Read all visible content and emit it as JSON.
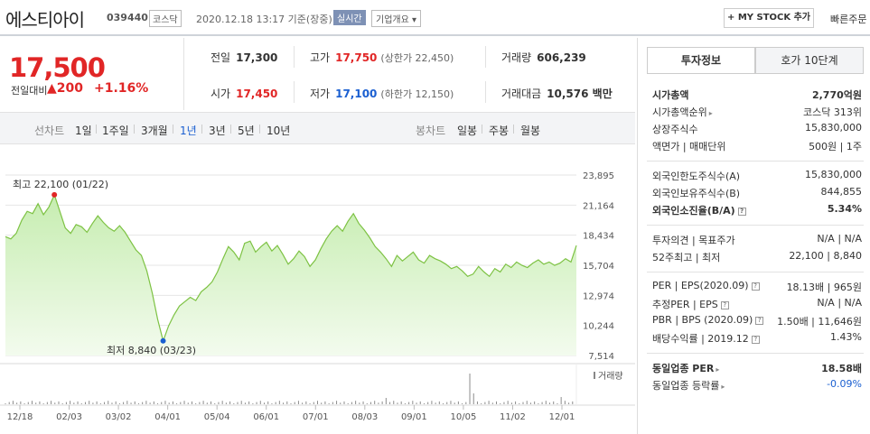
{
  "header": {
    "name": "에스티아이",
    "code": "039440",
    "market": "코스닥",
    "timestamp": "2020.12.18 13:17 기준(장중)",
    "realtime": "실시간",
    "company_info": "기업개요",
    "mystock": "+ MY STOCK 추가",
    "quick_order": "빠른주문"
  },
  "price": {
    "current": "17,500",
    "compare_label": "전일대비",
    "change": "▲200",
    "change_pct": "+1.16%"
  },
  "stats": {
    "prev_label": "전일",
    "prev": "17,300",
    "high_label": "고가",
    "high": "17,750",
    "upper_limit": "(상한가 22,450)",
    "volume_label": "거래량",
    "volume": "606,239",
    "open_label": "시가",
    "open": "17,450",
    "low_label": "저가",
    "low": "17,100",
    "lower_limit": "(하한가 12,150)",
    "amount_label": "거래대금",
    "amount": "10,576 백만"
  },
  "period": {
    "line_title": "선차트",
    "line_options": [
      "1일",
      "1주일",
      "3개월",
      "1년",
      "3년",
      "5년",
      "10년"
    ],
    "selected": "1년",
    "candle_title": "봉차트",
    "candle_options": [
      "일봉",
      "주봉",
      "월봉"
    ]
  },
  "chart_data": {
    "type": "area",
    "y_ticks": [
      "23,895",
      "21,164",
      "18,434",
      "15,704",
      "12,974",
      "10,244",
      "7,514"
    ],
    "ylim": [
      7514,
      23895
    ],
    "x_ticks": [
      "12/18",
      "02/03",
      "03/02",
      "04/01",
      "05/04",
      "06/01",
      "07/01",
      "08/03",
      "09/01",
      "10/05",
      "11/02",
      "12/01"
    ],
    "high_label": "최고 22,100 (01/22)",
    "low_label": "최저 8,840 (03/23)",
    "volume_legend": "거래량",
    "colors": {
      "line": "#7dc243",
      "fill_top": "#c6edb0",
      "fill_bottom": "#f3fbee",
      "high_dot": "#e12626",
      "low_dot": "#1a5fd1"
    },
    "values": [
      18300,
      18100,
      18600,
      19800,
      20600,
      20400,
      21300,
      20300,
      21000,
      22100,
      20600,
      19100,
      18600,
      19400,
      19200,
      18700,
      19500,
      20200,
      19600,
      19100,
      18800,
      19300,
      18700,
      17900,
      17100,
      16600,
      15200,
      13200,
      10800,
      8840,
      10200,
      11200,
      12000,
      12400,
      12800,
      12500,
      13300,
      13700,
      14200,
      15100,
      16300,
      17400,
      16900,
      16200,
      17700,
      17900,
      16900,
      17400,
      17800,
      17000,
      17500,
      16700,
      15800,
      16300,
      17000,
      16500,
      15600,
      16200,
      17200,
      18100,
      18800,
      19300,
      18800,
      19700,
      20400,
      19500,
      18900,
      18200,
      17400,
      16900,
      16300,
      15600,
      16600,
      16100,
      16500,
      16900,
      16200,
      15900,
      16600,
      16300,
      16100,
      15800,
      15400,
      15600,
      15200,
      14700,
      14900,
      15600,
      15100,
      14700,
      15400,
      15100,
      15800,
      15500,
      16000,
      15700,
      15500,
      15900,
      16200,
      15800,
      16000,
      15700,
      15900,
      16300,
      16000,
      17500
    ]
  },
  "panel": {
    "tab_active": "투자정보",
    "tab_inactive": "호가 10단계",
    "market_cap_label": "시가총액",
    "market_cap": "2,770억원",
    "rank_label": "시가총액순위",
    "rank": "코스닥 313위",
    "shares_label": "상장주식수",
    "shares": "15,830,000",
    "par_label": "액면가 | 매매단위",
    "par": "500원 | 1주",
    "foreign_limit_label": "외국인한도주식수(A)",
    "foreign_limit": "15,830,000",
    "foreign_hold_label": "외국인보유주식수(B)",
    "foreign_hold": "844,855",
    "foreign_ratio_label": "외국인소진율(B/A)",
    "foreign_ratio": "5.34%",
    "opinion_label": "투자의견 | 목표주가",
    "opinion": "N/A | N/A",
    "w52_label": "52주최고 | 최저",
    "w52": "22,100 | 8,840",
    "per_label": "PER | EPS(2020.09)",
    "per": "18.13배 | 965원",
    "est_per_label": "추정PER | EPS",
    "est_per": "N/A | N/A",
    "pbr_label": "PBR | BPS (2020.09)",
    "pbr": "1.50배 | 11,646원",
    "div_label": "배당수익률 | 2019.12",
    "div": "1.43%",
    "ind_per_label": "동일업종 PER",
    "ind_per": "18.58배",
    "ind_rate_label": "동일업종 등락률",
    "ind_rate": "-0.09%"
  }
}
